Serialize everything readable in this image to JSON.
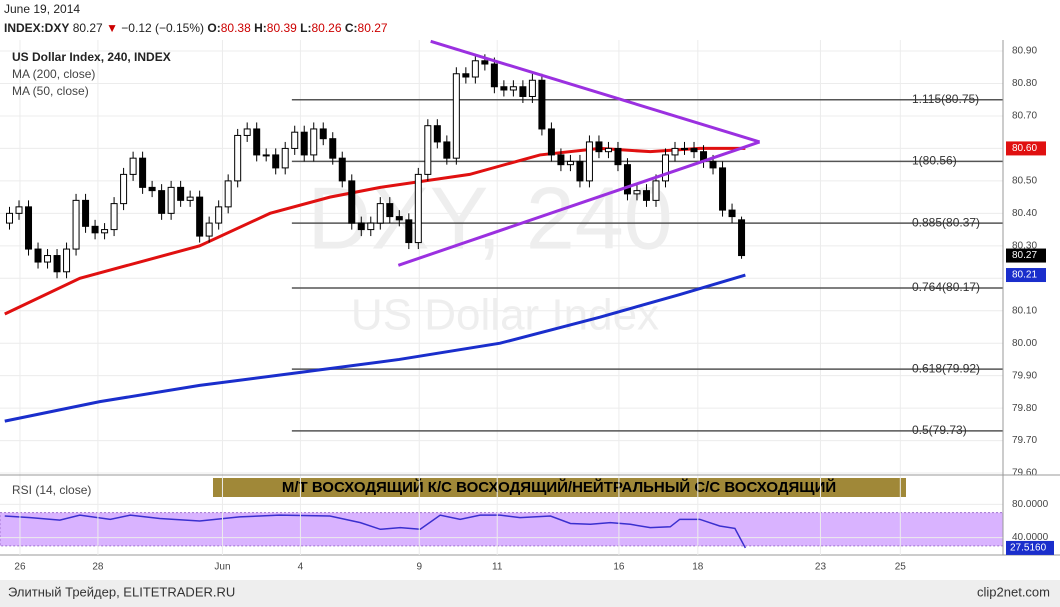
{
  "header": {
    "date": "June 19, 2014",
    "symbol": "INDEX:DXY",
    "last": "80.27",
    "arrow": "▼",
    "change": "−0.12 (−0.15%)",
    "o_label": "O:",
    "o": "80.38",
    "h_label": "H:",
    "h": "80.39",
    "l_label": "L:",
    "l": "80.26",
    "c_label": "C:",
    "c": "80.27"
  },
  "footer": {
    "left": "Элитный Трейдер, ELITETRADER.RU",
    "right": "clip2net.com"
  },
  "chart_data": [
    {
      "type": "candlestick",
      "title": "US Dollar Index, 240, INDEX",
      "watermark": [
        "DXY, 240",
        "US Dollar Index"
      ],
      "up_color": "#ffffff",
      "down_color": "#000000",
      "open": [
        80.37,
        80.4,
        80.42,
        80.29,
        80.25,
        80.27,
        80.22,
        80.29,
        80.44,
        80.36,
        80.34,
        80.35,
        80.43,
        80.52,
        80.57,
        80.48,
        80.47,
        80.4,
        80.48,
        80.44,
        80.45,
        80.33,
        80.37,
        80.42,
        80.5,
        80.64,
        80.66,
        80.58,
        80.58,
        80.54,
        80.6,
        80.65,
        80.58,
        80.66,
        80.63,
        80.57,
        80.5,
        80.37,
        80.35,
        80.37,
        80.43,
        80.39,
        80.38,
        80.31,
        80.52,
        80.67,
        80.62,
        80.57,
        80.83,
        80.82,
        80.87,
        80.86,
        80.79,
        80.78,
        80.79,
        80.76,
        80.81,
        80.66,
        80.58,
        80.55,
        80.56,
        80.5,
        80.62,
        80.59,
        80.6,
        80.55,
        80.46,
        80.47,
        80.44,
        80.5,
        80.58,
        80.6,
        80.6,
        80.59,
        80.56,
        80.54,
        80.41,
        80.38
      ],
      "high": [
        80.42,
        80.44,
        80.44,
        80.31,
        80.29,
        80.29,
        80.31,
        80.46,
        80.46,
        80.38,
        80.37,
        80.45,
        80.54,
        80.59,
        80.59,
        80.5,
        80.49,
        80.5,
        80.5,
        80.47,
        80.47,
        80.39,
        80.44,
        80.52,
        80.66,
        80.68,
        80.68,
        80.6,
        80.6,
        80.62,
        80.67,
        80.67,
        80.68,
        80.68,
        80.65,
        80.59,
        80.52,
        80.39,
        80.39,
        80.45,
        80.45,
        80.41,
        80.4,
        80.54,
        80.69,
        80.69,
        80.64,
        80.85,
        80.85,
        80.89,
        80.89,
        80.88,
        80.81,
        80.81,
        80.81,
        80.83,
        80.83,
        80.68,
        80.6,
        80.58,
        80.58,
        80.64,
        80.64,
        80.62,
        80.62,
        80.57,
        80.49,
        80.49,
        80.52,
        80.6,
        80.62,
        80.62,
        80.62,
        80.61,
        80.58,
        80.56,
        80.43,
        80.39
      ],
      "low": [
        80.35,
        80.38,
        80.27,
        80.23,
        80.23,
        80.2,
        80.2,
        80.27,
        80.34,
        80.32,
        80.32,
        80.33,
        80.41,
        80.5,
        80.46,
        80.45,
        80.38,
        80.38,
        80.42,
        80.42,
        80.31,
        80.31,
        80.35,
        80.4,
        80.48,
        80.62,
        80.56,
        80.56,
        80.52,
        80.52,
        80.58,
        80.56,
        80.56,
        80.61,
        80.55,
        80.48,
        80.35,
        80.33,
        80.33,
        80.35,
        80.37,
        80.36,
        80.29,
        80.29,
        80.5,
        80.6,
        80.55,
        80.55,
        80.8,
        80.8,
        80.84,
        80.77,
        80.76,
        80.76,
        80.74,
        80.74,
        80.64,
        80.56,
        80.53,
        80.53,
        80.48,
        80.48,
        80.57,
        80.57,
        80.53,
        80.44,
        80.44,
        80.42,
        80.42,
        80.48,
        80.56,
        80.58,
        80.57,
        80.54,
        80.52,
        80.39,
        80.37,
        80.26
      ],
      "close": [
        80.4,
        80.42,
        80.29,
        80.25,
        80.27,
        80.22,
        80.29,
        80.44,
        80.36,
        80.34,
        80.35,
        80.43,
        80.52,
        80.57,
        80.48,
        80.47,
        80.4,
        80.48,
        80.44,
        80.45,
        80.33,
        80.37,
        80.42,
        80.5,
        80.64,
        80.66,
        80.58,
        80.58,
        80.54,
        80.6,
        80.65,
        80.58,
        80.66,
        80.63,
        80.57,
        80.5,
        80.37,
        80.35,
        80.37,
        80.43,
        80.39,
        80.38,
        80.31,
        80.52,
        80.67,
        80.62,
        80.57,
        80.83,
        80.82,
        80.87,
        80.86,
        80.79,
        80.78,
        80.79,
        80.76,
        80.81,
        80.66,
        80.58,
        80.55,
        80.56,
        80.5,
        80.62,
        80.59,
        80.6,
        80.55,
        80.46,
        80.47,
        80.44,
        80.5,
        80.58,
        80.6,
        80.6,
        80.59,
        80.56,
        80.54,
        80.41,
        80.39,
        80.27
      ],
      "series": [
        {
          "name": "MA (200, close)",
          "color": "#1a2ecc",
          "x": [
            -0.5,
            9.5,
            20,
            30.6,
            41,
            51.6,
            62.1,
            70.5,
            77.4
          ],
          "values": [
            79.76,
            79.82,
            79.87,
            79.91,
            79.95,
            80.0,
            80.08,
            80.15,
            80.21
          ]
        },
        {
          "name": "MA (50, close)",
          "color": "#e01010",
          "x": [
            -0.5,
            7.4,
            13.7,
            20,
            27.4,
            33.7,
            39,
            48.4,
            55.8,
            62.1,
            67.4,
            72.6,
            77.4
          ],
          "values": [
            80.09,
            80.2,
            80.25,
            80.3,
            80.4,
            80.45,
            80.48,
            80.52,
            80.58,
            80.6,
            80.59,
            80.6,
            80.6
          ]
        }
      ],
      "trendlines": [
        {
          "color": "#9b30e0",
          "x": [
            44.3,
            78.9
          ],
          "values": [
            80.93,
            80.62
          ]
        },
        {
          "color": "#9b30e0",
          "x": [
            40.9,
            78.9
          ],
          "values": [
            80.24,
            80.62
          ]
        }
      ],
      "fib_start": 29.7,
      "fib_levels": [
        {
          "value": 80.75,
          "label": "1.115(80.75)"
        },
        {
          "value": 80.56,
          "label": "1(80.56)"
        },
        {
          "value": 80.37,
          "label": "0.885(80.37)"
        },
        {
          "value": 80.17,
          "label": "0.764(80.17)"
        },
        {
          "value": 79.92,
          "label": "0.618(79.92)"
        },
        {
          "value": 79.73,
          "label": "0.5(79.73)"
        }
      ],
      "price_tags": [
        {
          "value": 80.6,
          "label": "80.60",
          "color": "#e01010"
        },
        {
          "value": 80.27,
          "label": "80.27",
          "color": "#000000"
        },
        {
          "value": 80.21,
          "label": "80.21",
          "color": "#1a2ecc"
        }
      ],
      "xlim": [
        -1,
        104.5
      ],
      "xticks": [
        {
          "value": 1.1,
          "label": "26"
        },
        {
          "value": 9.3,
          "label": "28"
        },
        {
          "value": 22.4,
          "label": "Jun"
        },
        {
          "value": 30.6,
          "label": "4"
        },
        {
          "value": 43.1,
          "label": "9"
        },
        {
          "value": 51.3,
          "label": "11"
        },
        {
          "value": 64.1,
          "label": "16"
        },
        {
          "value": 72.4,
          "label": "18"
        },
        {
          "value": 85.3,
          "label": "23"
        },
        {
          "value": 93.7,
          "label": "25"
        }
      ],
      "ylim": [
        79.594,
        80.934
      ],
      "yticks": [
        {
          "value": 80.9,
          "label": "80.90"
        },
        {
          "value": 80.8,
          "label": "80.80"
        },
        {
          "value": 80.7,
          "label": "80.70"
        },
        {
          "value": 80.6,
          "label": "80.60"
        },
        {
          "value": 80.5,
          "label": "80.50"
        },
        {
          "value": 80.4,
          "label": "80.40"
        },
        {
          "value": 80.3,
          "label": "80.30"
        },
        {
          "value": 80.2,
          "label": "80.20"
        },
        {
          "value": 80.1,
          "label": "80.10"
        },
        {
          "value": 80,
          "label": "80.00"
        },
        {
          "value": 79.9,
          "label": "79.90"
        },
        {
          "value": 79.8,
          "label": "79.80"
        },
        {
          "value": 79.7,
          "label": "79.70"
        },
        {
          "value": 79.6,
          "label": "79.60"
        }
      ],
      "grid": true
    },
    {
      "type": "rsi",
      "title": "RSI (14, close)",
      "banner": "М/Т ВОСХОДЯЩИЙ К/С ВОСХОДЯЩИЙ/НЕЙТРАЛЬНЫЙ С/С ВОСХОДЯЩИЙ",
      "band": [
        30,
        70
      ],
      "band_color": "#d9b3ff",
      "series": [
        {
          "name": "RSI",
          "color": "#3a2fcf",
          "x": [
            -0.5,
            2.2,
            5.3,
            7.4,
            10.6,
            12.7,
            15.8,
            20,
            24.2,
            28.4,
            33.7,
            36.9,
            39,
            41.1,
            43.2,
            45.3,
            47.4,
            49.5,
            51.6,
            53.7,
            56.9,
            59,
            61.1,
            63.2,
            65.3,
            67.4,
            69.5,
            70.5,
            72.6,
            74.7,
            76.3,
            77.4
          ],
          "values": [
            66,
            64,
            61,
            67,
            62,
            67,
            63,
            60,
            65,
            67,
            66,
            58,
            50,
            52,
            50,
            67,
            62,
            67,
            67,
            64,
            66,
            57,
            56,
            58,
            56,
            52,
            53,
            62,
            62,
            54,
            51,
            27.516
          ]
        }
      ],
      "price_tags": [
        {
          "value": 27.516,
          "label": "27.5160",
          "color": "#1a2ecc"
        }
      ],
      "xlim": [
        -1,
        104.5
      ],
      "ylim": [
        19,
        113
      ],
      "yticks": [
        {
          "value": 80,
          "label": "80.0000"
        },
        {
          "value": 40,
          "label": "40.0000"
        }
      ],
      "grid": true
    }
  ]
}
